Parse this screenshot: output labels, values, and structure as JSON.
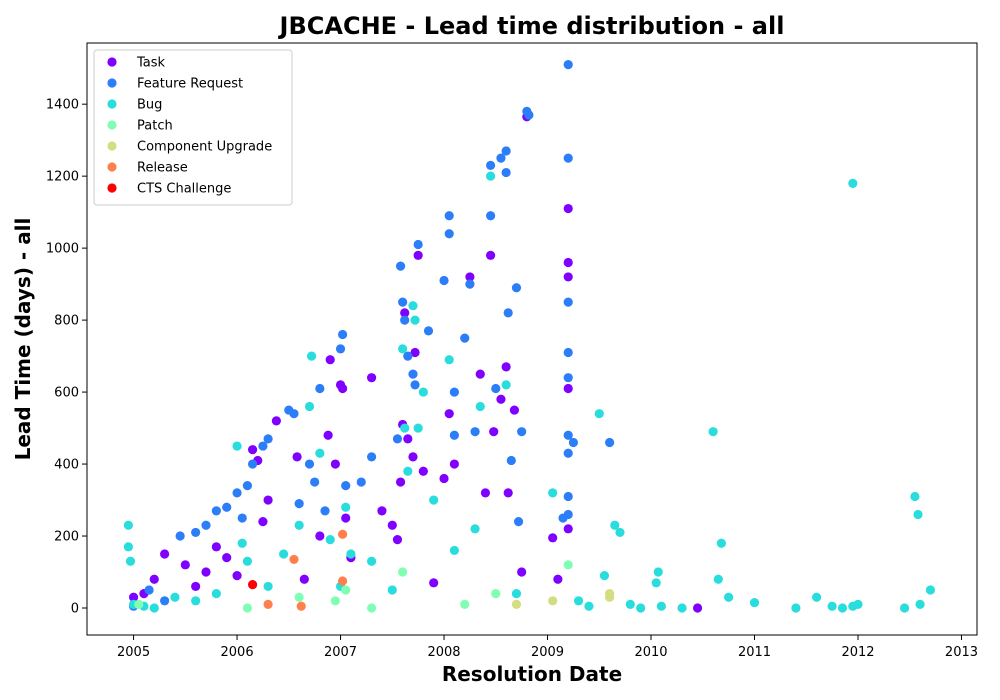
{
  "chart_data": {
    "type": "scatter",
    "title": "JBCACHE - Lead time distribution - all",
    "xlabel": "Resolution Date",
    "ylabel": "Lead Time (days) - all",
    "xlim": [
      2004.55,
      2013.15
    ],
    "ylim": [
      -75,
      1570
    ],
    "x_ticks": [
      "2005",
      "2006",
      "2007",
      "2008",
      "2009",
      "2010",
      "2011",
      "2012",
      "2013"
    ],
    "y_ticks": [
      "0",
      "200",
      "400",
      "600",
      "800",
      "1000",
      "1200",
      "1400"
    ],
    "grid": false,
    "legend_position": "top-left",
    "series": [
      {
        "name": "Task",
        "color": "#8000ff",
        "points": [
          [
            2005.0,
            30
          ],
          [
            2005.1,
            40
          ],
          [
            2005.2,
            80
          ],
          [
            2005.3,
            150
          ],
          [
            2005.5,
            120
          ],
          [
            2005.6,
            60
          ],
          [
            2005.7,
            100
          ],
          [
            2005.8,
            170
          ],
          [
            2005.9,
            140
          ],
          [
            2006.0,
            90
          ],
          [
            2006.15,
            440
          ],
          [
            2006.2,
            410
          ],
          [
            2006.25,
            240
          ],
          [
            2006.3,
            300
          ],
          [
            2006.38,
            520
          ],
          [
            2006.58,
            420
          ],
          [
            2006.65,
            80
          ],
          [
            2006.8,
            200
          ],
          [
            2006.88,
            480
          ],
          [
            2006.9,
            690
          ],
          [
            2006.95,
            400
          ],
          [
            2007.0,
            620
          ],
          [
            2007.02,
            610
          ],
          [
            2007.05,
            250
          ],
          [
            2007.1,
            140
          ],
          [
            2007.3,
            640
          ],
          [
            2007.4,
            270
          ],
          [
            2007.5,
            230
          ],
          [
            2007.55,
            190
          ],
          [
            2007.58,
            350
          ],
          [
            2007.6,
            510
          ],
          [
            2007.62,
            820
          ],
          [
            2007.65,
            470
          ],
          [
            2007.7,
            420
          ],
          [
            2007.72,
            710
          ],
          [
            2007.75,
            980
          ],
          [
            2007.8,
            380
          ],
          [
            2007.9,
            70
          ],
          [
            2008.0,
            360
          ],
          [
            2008.05,
            540
          ],
          [
            2008.1,
            400
          ],
          [
            2008.25,
            920
          ],
          [
            2008.35,
            650
          ],
          [
            2008.4,
            320
          ],
          [
            2008.45,
            980
          ],
          [
            2008.48,
            490
          ],
          [
            2008.55,
            580
          ],
          [
            2008.6,
            670
          ],
          [
            2008.62,
            320
          ],
          [
            2008.68,
            550
          ],
          [
            2008.75,
            100
          ],
          [
            2008.8,
            1365
          ],
          [
            2009.2,
            1110
          ],
          [
            2009.2,
            960
          ],
          [
            2009.2,
            920
          ],
          [
            2009.2,
            610
          ],
          [
            2009.2,
            220
          ],
          [
            2009.05,
            195
          ],
          [
            2009.1,
            80
          ],
          [
            2010.45,
            0
          ]
        ]
      },
      {
        "name": "Feature Request",
        "color": "#2c7ef8",
        "points": [
          [
            2005.0,
            5
          ],
          [
            2005.15,
            50
          ],
          [
            2005.3,
            20
          ],
          [
            2005.45,
            200
          ],
          [
            2005.6,
            210
          ],
          [
            2005.7,
            230
          ],
          [
            2005.8,
            270
          ],
          [
            2005.9,
            280
          ],
          [
            2006.0,
            320
          ],
          [
            2006.05,
            250
          ],
          [
            2006.1,
            340
          ],
          [
            2006.15,
            400
          ],
          [
            2006.25,
            450
          ],
          [
            2006.3,
            470
          ],
          [
            2006.5,
            550
          ],
          [
            2006.55,
            540
          ],
          [
            2006.6,
            290
          ],
          [
            2006.7,
            400
          ],
          [
            2006.75,
            350
          ],
          [
            2006.8,
            610
          ],
          [
            2006.85,
            270
          ],
          [
            2007.0,
            720
          ],
          [
            2007.02,
            760
          ],
          [
            2007.05,
            340
          ],
          [
            2007.2,
            350
          ],
          [
            2007.3,
            420
          ],
          [
            2007.55,
            470
          ],
          [
            2007.58,
            950
          ],
          [
            2007.6,
            850
          ],
          [
            2007.62,
            800
          ],
          [
            2007.65,
            700
          ],
          [
            2007.7,
            650
          ],
          [
            2007.72,
            620
          ],
          [
            2007.75,
            1010
          ],
          [
            2007.85,
            770
          ],
          [
            2008.0,
            910
          ],
          [
            2008.05,
            1090
          ],
          [
            2008.05,
            1040
          ],
          [
            2008.1,
            600
          ],
          [
            2008.1,
            480
          ],
          [
            2008.2,
            750
          ],
          [
            2008.25,
            900
          ],
          [
            2008.3,
            490
          ],
          [
            2008.45,
            1230
          ],
          [
            2008.45,
            1090
          ],
          [
            2008.5,
            610
          ],
          [
            2008.55,
            1250
          ],
          [
            2008.6,
            1270
          ],
          [
            2008.6,
            1210
          ],
          [
            2008.62,
            820
          ],
          [
            2008.65,
            410
          ],
          [
            2008.7,
            890
          ],
          [
            2008.72,
            240
          ],
          [
            2008.75,
            490
          ],
          [
            2008.8,
            1380
          ],
          [
            2008.82,
            1370
          ],
          [
            2009.2,
            1510
          ],
          [
            2009.2,
            1250
          ],
          [
            2009.2,
            850
          ],
          [
            2009.2,
            710
          ],
          [
            2009.2,
            640
          ],
          [
            2009.2,
            480
          ],
          [
            2009.2,
            430
          ],
          [
            2009.2,
            310
          ],
          [
            2009.2,
            260
          ],
          [
            2009.15,
            250
          ],
          [
            2009.6,
            460
          ],
          [
            2009.25,
            460
          ]
        ]
      },
      {
        "name": "Bug",
        "color": "#2adddd",
        "points": [
          [
            2004.95,
            230
          ],
          [
            2004.95,
            170
          ],
          [
            2004.97,
            130
          ],
          [
            2005.0,
            10
          ],
          [
            2005.1,
            5
          ],
          [
            2005.2,
            0
          ],
          [
            2005.4,
            30
          ],
          [
            2005.6,
            20
          ],
          [
            2005.8,
            40
          ],
          [
            2006.0,
            450
          ],
          [
            2006.05,
            180
          ],
          [
            2006.1,
            130
          ],
          [
            2006.3,
            60
          ],
          [
            2006.45,
            150
          ],
          [
            2006.6,
            230
          ],
          [
            2006.7,
            560
          ],
          [
            2006.72,
            700
          ],
          [
            2006.8,
            430
          ],
          [
            2006.9,
            190
          ],
          [
            2007.0,
            60
          ],
          [
            2007.05,
            280
          ],
          [
            2007.1,
            150
          ],
          [
            2007.3,
            130
          ],
          [
            2007.5,
            50
          ],
          [
            2007.6,
            720
          ],
          [
            2007.62,
            500
          ],
          [
            2007.65,
            380
          ],
          [
            2007.7,
            840
          ],
          [
            2007.72,
            800
          ],
          [
            2007.75,
            500
          ],
          [
            2007.8,
            600
          ],
          [
            2007.9,
            300
          ],
          [
            2008.05,
            690
          ],
          [
            2008.1,
            160
          ],
          [
            2008.3,
            220
          ],
          [
            2008.35,
            560
          ],
          [
            2008.45,
            1200
          ],
          [
            2008.6,
            620
          ],
          [
            2008.7,
            40
          ],
          [
            2009.05,
            320
          ],
          [
            2009.5,
            540
          ],
          [
            2009.55,
            90
          ],
          [
            2009.65,
            230
          ],
          [
            2009.7,
            210
          ],
          [
            2010.05,
            70
          ],
          [
            2010.07,
            100
          ],
          [
            2010.6,
            490
          ],
          [
            2010.65,
            80
          ],
          [
            2010.68,
            180
          ],
          [
            2010.75,
            30
          ],
          [
            2011.0,
            15
          ],
          [
            2011.4,
            0
          ],
          [
            2011.6,
            30
          ],
          [
            2011.75,
            5
          ],
          [
            2011.85,
            0
          ],
          [
            2011.95,
            1180
          ],
          [
            2011.95,
            5
          ],
          [
            2012.0,
            10
          ],
          [
            2012.45,
            0
          ],
          [
            2012.55,
            310
          ],
          [
            2012.58,
            260
          ],
          [
            2012.6,
            10
          ],
          [
            2012.7,
            50
          ],
          [
            2010.3,
            0
          ],
          [
            2010.1,
            5
          ],
          [
            2009.8,
            10
          ],
          [
            2009.9,
            0
          ],
          [
            2009.3,
            20
          ],
          [
            2009.4,
            5
          ]
        ]
      },
      {
        "name": "Patch",
        "color": "#80ffb4",
        "points": [
          [
            2005.05,
            10
          ],
          [
            2006.1,
            0
          ],
          [
            2006.6,
            30
          ],
          [
            2006.95,
            20
          ],
          [
            2007.05,
            50
          ],
          [
            2007.3,
            0
          ],
          [
            2007.6,
            100
          ],
          [
            2008.2,
            10
          ],
          [
            2008.5,
            40
          ],
          [
            2009.2,
            120
          ]
        ]
      },
      {
        "name": "Component  Upgrade",
        "color": "#d4dd80",
        "points": [
          [
            2008.7,
            10
          ],
          [
            2009.05,
            20
          ],
          [
            2009.6,
            40
          ],
          [
            2009.6,
            30
          ]
        ]
      },
      {
        "name": "Release",
        "color": "#ff7f4d",
        "points": [
          [
            2006.3,
            10
          ],
          [
            2006.55,
            135
          ],
          [
            2006.62,
            5
          ],
          [
            2007.02,
            205
          ],
          [
            2007.02,
            75
          ]
        ]
      },
      {
        "name": "CTS Challenge",
        "color": "#ff0000",
        "points": [
          [
            2006.15,
            65
          ]
        ]
      }
    ]
  }
}
